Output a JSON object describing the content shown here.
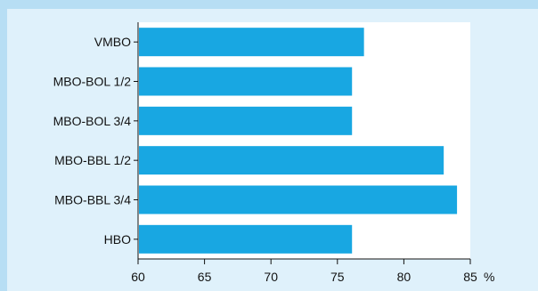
{
  "chart_data": {
    "type": "bar",
    "orientation": "horizontal",
    "categories": [
      "VMBO",
      "MBO-BOL 1/2",
      "MBO-BOL 3/4",
      "MBO-BBL 1/2",
      "MBO-BBL 3/4",
      "HBO"
    ],
    "values": [
      77,
      76.1,
      76.1,
      83,
      84,
      76.1
    ],
    "xlim": [
      60,
      85
    ],
    "x_ticks": [
      "60",
      "65",
      "70",
      "75",
      "80",
      "85"
    ],
    "x_unit": "%",
    "grid": false,
    "colors": {
      "bar": "#18a7e2",
      "plot_background": "#ffffff",
      "panel_background": "#dff1fb",
      "frame_background": "#b7def4",
      "axis": "#111111"
    }
  }
}
